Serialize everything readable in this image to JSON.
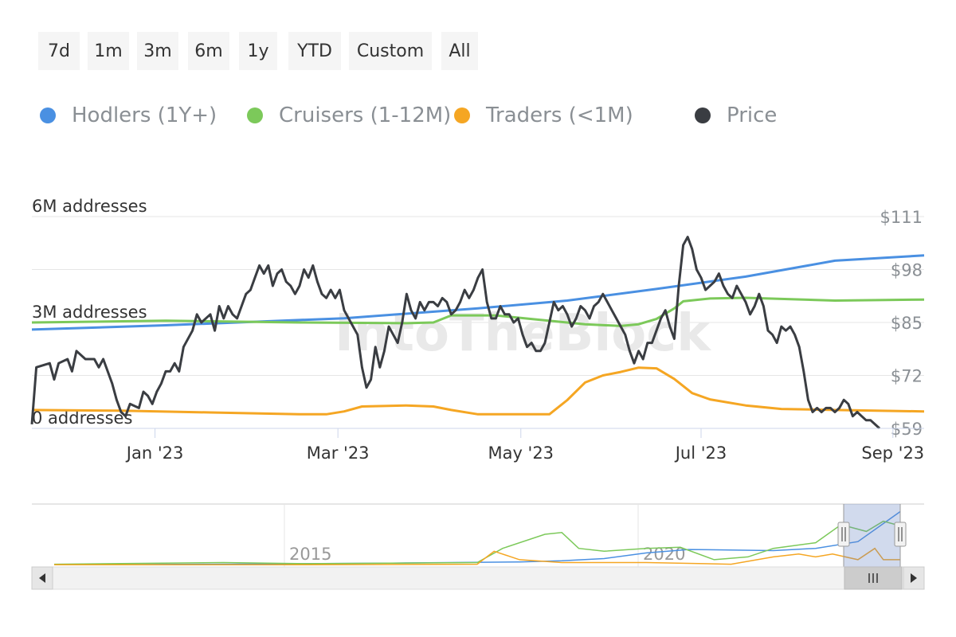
{
  "range_buttons": [
    "7d",
    "1m",
    "3m",
    "6m",
    "1y",
    "YTD",
    "Custom",
    "All"
  ],
  "legend": [
    {
      "label": "Hodlers (1Y+)",
      "color": "#4a90e2"
    },
    {
      "label": "Cruisers (1-12M)",
      "color": "#7cc95a"
    },
    {
      "label": "Traders (<1M)",
      "color": "#f5a623"
    },
    {
      "label": "Price",
      "color": "#3a3d42"
    }
  ],
  "watermark": "IntoTheBlock",
  "chart_data": {
    "type": "line",
    "x_tick_labels": [
      "Jan '23",
      "Mar '23",
      "May '23",
      "Jul '23",
      "Sep '23"
    ],
    "left_axis": {
      "labels": [
        "0 addresses",
        "3M addresses",
        "6M addresses"
      ],
      "ylim": [
        0,
        6
      ]
    },
    "right_axis": {
      "labels": [
        "$59",
        "$72",
        "$85",
        "$98",
        "$111"
      ],
      "ylim": [
        59,
        111
      ]
    },
    "series": [
      {
        "name": "Hodlers (1Y+)",
        "color": "#4a90e2",
        "axis": "left",
        "values": [
          [
            0,
            2.8
          ],
          [
            0.15,
            2.92
          ],
          [
            0.35,
            3.12
          ],
          [
            0.5,
            3.4
          ],
          [
            0.6,
            3.62
          ],
          [
            0.7,
            3.95
          ],
          [
            0.8,
            4.3
          ],
          [
            0.9,
            4.75
          ],
          [
            1.0,
            4.9
          ]
        ]
      },
      {
        "name": "Cruisers (1-12M)",
        "color": "#7cc95a",
        "axis": "left",
        "values": [
          [
            0,
            3.0
          ],
          [
            0.15,
            3.05
          ],
          [
            0.3,
            3.0
          ],
          [
            0.42,
            2.98
          ],
          [
            0.45,
            3.0
          ],
          [
            0.47,
            3.2
          ],
          [
            0.52,
            3.2
          ],
          [
            0.56,
            3.1
          ],
          [
            0.62,
            2.95
          ],
          [
            0.66,
            2.9
          ],
          [
            0.68,
            2.95
          ],
          [
            0.7,
            3.1
          ],
          [
            0.72,
            3.4
          ],
          [
            0.73,
            3.6
          ],
          [
            0.76,
            3.68
          ],
          [
            0.8,
            3.7
          ],
          [
            0.9,
            3.62
          ],
          [
            1.0,
            3.65
          ]
        ]
      },
      {
        "name": "Traders (<1M)",
        "color": "#f5a623",
        "axis": "left",
        "values": [
          [
            0,
            0.52
          ],
          [
            0.1,
            0.5
          ],
          [
            0.2,
            0.45
          ],
          [
            0.3,
            0.4
          ],
          [
            0.33,
            0.4
          ],
          [
            0.35,
            0.48
          ],
          [
            0.37,
            0.62
          ],
          [
            0.42,
            0.65
          ],
          [
            0.45,
            0.62
          ],
          [
            0.47,
            0.52
          ],
          [
            0.5,
            0.4
          ],
          [
            0.55,
            0.4
          ],
          [
            0.58,
            0.4
          ],
          [
            0.6,
            0.8
          ],
          [
            0.62,
            1.3
          ],
          [
            0.64,
            1.5
          ],
          [
            0.66,
            1.6
          ],
          [
            0.68,
            1.72
          ],
          [
            0.7,
            1.7
          ],
          [
            0.72,
            1.4
          ],
          [
            0.74,
            1.0
          ],
          [
            0.76,
            0.82
          ],
          [
            0.8,
            0.65
          ],
          [
            0.84,
            0.55
          ],
          [
            0.9,
            0.52
          ],
          [
            1.0,
            0.48
          ]
        ]
      },
      {
        "name": "Price",
        "color": "#3a3d42",
        "axis": "right",
        "values": [
          [
            0,
            60
          ],
          [
            0.005,
            74
          ],
          [
            0.02,
            75
          ],
          [
            0.025,
            71
          ],
          [
            0.03,
            75
          ],
          [
            0.04,
            76
          ],
          [
            0.045,
            73
          ],
          [
            0.05,
            78
          ],
          [
            0.06,
            76
          ],
          [
            0.07,
            76
          ],
          [
            0.075,
            74
          ],
          [
            0.08,
            76
          ],
          [
            0.085,
            73
          ],
          [
            0.09,
            70
          ],
          [
            0.095,
            66
          ],
          [
            0.1,
            63
          ],
          [
            0.105,
            62
          ],
          [
            0.11,
            65
          ],
          [
            0.12,
            64
          ],
          [
            0.125,
            68
          ],
          [
            0.13,
            67
          ],
          [
            0.135,
            65
          ],
          [
            0.14,
            68
          ],
          [
            0.145,
            70
          ],
          [
            0.15,
            73
          ],
          [
            0.155,
            73
          ],
          [
            0.16,
            75
          ],
          [
            0.165,
            73
          ],
          [
            0.17,
            79
          ],
          [
            0.18,
            83
          ],
          [
            0.185,
            87
          ],
          [
            0.19,
            85
          ],
          [
            0.2,
            87
          ],
          [
            0.205,
            83
          ],
          [
            0.21,
            89
          ],
          [
            0.215,
            86
          ],
          [
            0.22,
            89
          ],
          [
            0.225,
            87
          ],
          [
            0.23,
            86
          ],
          [
            0.235,
            89
          ],
          [
            0.24,
            92
          ],
          [
            0.245,
            93
          ],
          [
            0.25,
            96
          ],
          [
            0.255,
            99
          ],
          [
            0.26,
            97
          ],
          [
            0.265,
            99
          ],
          [
            0.27,
            94
          ],
          [
            0.275,
            97
          ],
          [
            0.28,
            98
          ],
          [
            0.285,
            95
          ],
          [
            0.29,
            94
          ],
          [
            0.295,
            92
          ],
          [
            0.3,
            94
          ],
          [
            0.305,
            98
          ],
          [
            0.31,
            96
          ],
          [
            0.315,
            99
          ],
          [
            0.32,
            95
          ],
          [
            0.325,
            92
          ],
          [
            0.33,
            91
          ],
          [
            0.335,
            93
          ],
          [
            0.34,
            91
          ],
          [
            0.345,
            93
          ],
          [
            0.35,
            88
          ],
          [
            0.355,
            86
          ],
          [
            0.36,
            84
          ],
          [
            0.365,
            82
          ],
          [
            0.37,
            74
          ],
          [
            0.375,
            69
          ],
          [
            0.38,
            71
          ],
          [
            0.385,
            79
          ],
          [
            0.39,
            74
          ],
          [
            0.395,
            78
          ],
          [
            0.4,
            84
          ],
          [
            0.405,
            82
          ],
          [
            0.41,
            80
          ],
          [
            0.415,
            85
          ],
          [
            0.42,
            92
          ],
          [
            0.425,
            88
          ],
          [
            0.43,
            86
          ],
          [
            0.435,
            90
          ],
          [
            0.44,
            88
          ],
          [
            0.445,
            90
          ],
          [
            0.45,
            90
          ],
          [
            0.455,
            89
          ],
          [
            0.46,
            91
          ],
          [
            0.465,
            90
          ],
          [
            0.47,
            87
          ],
          [
            0.475,
            88
          ],
          [
            0.48,
            90
          ],
          [
            0.485,
            93
          ],
          [
            0.49,
            91
          ],
          [
            0.495,
            93
          ],
          [
            0.5,
            96
          ],
          [
            0.505,
            98
          ],
          [
            0.51,
            90
          ],
          [
            0.515,
            86
          ],
          [
            0.52,
            86
          ],
          [
            0.525,
            89
          ],
          [
            0.53,
            87
          ],
          [
            0.535,
            87
          ],
          [
            0.54,
            85
          ],
          [
            0.545,
            86
          ],
          [
            0.55,
            82
          ],
          [
            0.555,
            79
          ],
          [
            0.56,
            80
          ],
          [
            0.565,
            78
          ],
          [
            0.57,
            78
          ],
          [
            0.575,
            80
          ],
          [
            0.58,
            85
          ],
          [
            0.585,
            90
          ],
          [
            0.59,
            88
          ],
          [
            0.595,
            89
          ],
          [
            0.6,
            87
          ],
          [
            0.605,
            84
          ],
          [
            0.61,
            86
          ],
          [
            0.615,
            89
          ],
          [
            0.62,
            88
          ],
          [
            0.625,
            86
          ],
          [
            0.63,
            89
          ],
          [
            0.635,
            90
          ],
          [
            0.64,
            92
          ],
          [
            0.645,
            90
          ],
          [
            0.65,
            88
          ],
          [
            0.655,
            86
          ],
          [
            0.66,
            84
          ],
          [
            0.665,
            82
          ],
          [
            0.67,
            78
          ],
          [
            0.675,
            75
          ],
          [
            0.68,
            78
          ],
          [
            0.685,
            76
          ],
          [
            0.69,
            80
          ],
          [
            0.695,
            80
          ],
          [
            0.7,
            83
          ],
          [
            0.705,
            86
          ],
          [
            0.71,
            88
          ],
          [
            0.715,
            84
          ],
          [
            0.72,
            81
          ],
          [
            0.725,
            94
          ],
          [
            0.73,
            104
          ],
          [
            0.735,
            106
          ],
          [
            0.74,
            103
          ],
          [
            0.745,
            98
          ],
          [
            0.75,
            96
          ],
          [
            0.755,
            93
          ],
          [
            0.76,
            94
          ],
          [
            0.765,
            95
          ],
          [
            0.77,
            97
          ],
          [
            0.775,
            94
          ],
          [
            0.78,
            92
          ],
          [
            0.785,
            91
          ],
          [
            0.79,
            94
          ],
          [
            0.795,
            92
          ],
          [
            0.8,
            90
          ],
          [
            0.805,
            87
          ],
          [
            0.81,
            89
          ],
          [
            0.815,
            92
          ],
          [
            0.82,
            89
          ],
          [
            0.825,
            83
          ],
          [
            0.83,
            82
          ],
          [
            0.835,
            80
          ],
          [
            0.84,
            84
          ],
          [
            0.845,
            83
          ],
          [
            0.85,
            84
          ],
          [
            0.855,
            82
          ],
          [
            0.86,
            79
          ],
          [
            0.865,
            73
          ],
          [
            0.87,
            66
          ],
          [
            0.875,
            63
          ],
          [
            0.88,
            64
          ],
          [
            0.885,
            63
          ],
          [
            0.89,
            64
          ],
          [
            0.895,
            64
          ],
          [
            0.9,
            63
          ],
          [
            0.905,
            64
          ],
          [
            0.91,
            66
          ],
          [
            0.915,
            65
          ],
          [
            0.92,
            62
          ],
          [
            0.925,
            63
          ],
          [
            0.93,
            62
          ],
          [
            0.935,
            61
          ],
          [
            0.94,
            61
          ],
          [
            0.945,
            60
          ],
          [
            0.95,
            59
          ]
        ]
      }
    ],
    "navigator": {
      "x_tick_labels": [
        "2015",
        "2020"
      ],
      "series": [
        {
          "name": "Hodlers (1Y+)",
          "color": "#4a90e2",
          "values": [
            [
              0,
              0.01
            ],
            [
              0.2,
              0.02
            ],
            [
              0.4,
              0.04
            ],
            [
              0.55,
              0.06
            ],
            [
              0.6,
              0.08
            ],
            [
              0.65,
              0.12
            ],
            [
              0.7,
              0.22
            ],
            [
              0.75,
              0.28
            ],
            [
              0.85,
              0.26
            ],
            [
              0.9,
              0.3
            ],
            [
              0.95,
              0.42
            ],
            [
              1.0,
              0.95
            ]
          ]
        },
        {
          "name": "Cruisers (1-12M)",
          "color": "#7cc95a",
          "values": [
            [
              0,
              0.02
            ],
            [
              0.2,
              0.05
            ],
            [
              0.3,
              0.03
            ],
            [
              0.5,
              0.05
            ],
            [
              0.53,
              0.3
            ],
            [
              0.58,
              0.55
            ],
            [
              0.6,
              0.58
            ],
            [
              0.62,
              0.3
            ],
            [
              0.65,
              0.25
            ],
            [
              0.7,
              0.3
            ],
            [
              0.74,
              0.32
            ],
            [
              0.78,
              0.1
            ],
            [
              0.82,
              0.15
            ],
            [
              0.85,
              0.3
            ],
            [
              0.9,
              0.4
            ],
            [
              0.93,
              0.72
            ],
            [
              0.96,
              0.6
            ],
            [
              0.98,
              0.78
            ],
            [
              1.0,
              0.7
            ]
          ]
        },
        {
          "name": "Traders (<1M)",
          "color": "#f5a623",
          "values": [
            [
              0,
              0.01
            ],
            [
              0.3,
              0.01
            ],
            [
              0.5,
              0.02
            ],
            [
              0.52,
              0.25
            ],
            [
              0.55,
              0.1
            ],
            [
              0.6,
              0.05
            ],
            [
              0.7,
              0.05
            ],
            [
              0.8,
              0.02
            ],
            [
              0.85,
              0.15
            ],
            [
              0.88,
              0.2
            ],
            [
              0.9,
              0.15
            ],
            [
              0.92,
              0.2
            ],
            [
              0.95,
              0.1
            ],
            [
              0.97,
              0.3
            ],
            [
              0.98,
              0.1
            ],
            [
              1.0,
              0.1
            ]
          ]
        }
      ]
    }
  }
}
